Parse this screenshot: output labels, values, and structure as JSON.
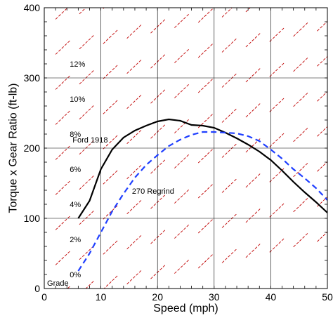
{
  "chart_data": {
    "type": "line",
    "xlabel": "Speed (mph)",
    "ylabel": "Torque x Gear Ratio (ft-lb)",
    "xlim": [
      0,
      50
    ],
    "ylim": [
      0,
      400
    ],
    "xticks": [
      0,
      10,
      20,
      30,
      40,
      50
    ],
    "yticks": [
      0,
      100,
      200,
      300,
      400
    ],
    "grid": true,
    "colors": {
      "grid": "#000000",
      "grade_lines": "#c00000",
      "series_1": "#000000",
      "series_2": "#1f3fff"
    },
    "grade_lines": {
      "labels": [
        "0%",
        "2%",
        "4%",
        "6%",
        "8%",
        "10%",
        "12%"
      ],
      "values_at_label": [
        20,
        70,
        120,
        170,
        220,
        270,
        320
      ],
      "extra_label": "Grade"
    },
    "series": [
      {
        "name": "Ford 1918",
        "style": "solid",
        "x": [
          6,
          8,
          10,
          12,
          14,
          16,
          18,
          20,
          22,
          24,
          26,
          28,
          30,
          32,
          34,
          36,
          38,
          40,
          42,
          44,
          46,
          48,
          50
        ],
        "y": [
          100,
          125,
          170,
          198,
          215,
          225,
          232,
          238,
          241,
          239,
          233,
          232,
          229,
          222,
          214,
          205,
          195,
          183,
          168,
          152,
          137,
          123,
          108
        ]
      },
      {
        "name": "270 Regrind",
        "style": "dashed",
        "x": [
          6,
          8,
          10,
          12,
          14,
          16,
          18,
          20,
          22,
          24,
          26,
          28,
          30,
          32,
          34,
          36,
          38,
          40,
          42,
          44,
          46,
          48,
          50
        ],
        "y": [
          25,
          50,
          80,
          110,
          135,
          158,
          176,
          190,
          203,
          212,
          219,
          223,
          223,
          222,
          221,
          217,
          210,
          198,
          185,
          170,
          157,
          143,
          126
        ]
      }
    ]
  }
}
